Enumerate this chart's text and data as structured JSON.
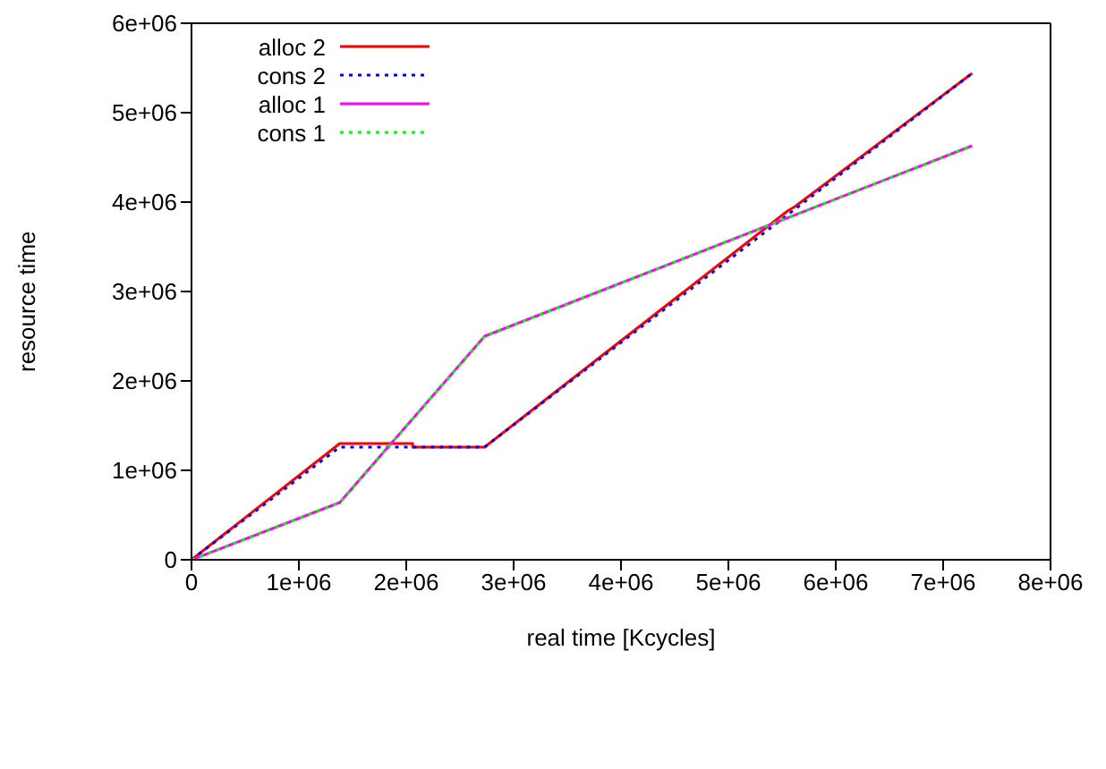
{
  "chart_data": {
    "type": "line",
    "xlabel": "real time [Kcycles]",
    "ylabel": "resource time",
    "xlim": [
      0,
      8000000
    ],
    "xticks": [
      {
        "value": 0,
        "label": "0"
      },
      {
        "value": 1000000,
        "label": "1e+06"
      },
      {
        "value": 2000000,
        "label": "2e+06"
      },
      {
        "value": 3000000,
        "label": "3e+06"
      },
      {
        "value": 4000000,
        "label": "4e+06"
      },
      {
        "value": 5000000,
        "label": "5e+06"
      },
      {
        "value": 6000000,
        "label": "6e+06"
      },
      {
        "value": 7000000,
        "label": "7e+06"
      },
      {
        "value": 8000000,
        "label": "8e+06"
      }
    ],
    "ylim": [
      0,
      6000000
    ],
    "yticks": [
      {
        "value": 0,
        "label": "0"
      },
      {
        "value": 1000000,
        "label": "1e+06"
      },
      {
        "value": 2000000,
        "label": "2e+06"
      },
      {
        "value": 3000000,
        "label": "3e+06"
      },
      {
        "value": 4000000,
        "label": "4e+06"
      },
      {
        "value": 5000000,
        "label": "5e+06"
      },
      {
        "value": 6000000,
        "label": "6e+06"
      }
    ],
    "legend": "top left",
    "marker": "none",
    "series": [
      {
        "name": "alloc 2",
        "color": "#ff0000",
        "line_style": "solid",
        "x": [
          0,
          1380000,
          2060000,
          2060000,
          2730000,
          5550000,
          5620000,
          7270000
        ],
        "values": [
          0,
          1300000,
          1300000,
          1260000,
          1260000,
          3900000,
          3950000,
          5440000
        ]
      },
      {
        "name": "cons 2",
        "color": "#0000ff",
        "line_style": "dotted",
        "x": [
          0,
          1380000,
          2730000,
          7270000
        ],
        "values": [
          0,
          1260000,
          1260000,
          5440000
        ]
      },
      {
        "name": "alloc 1",
        "color": "#ff00ff",
        "line_style": "solid",
        "x": [
          0,
          1380000,
          2730000,
          7270000
        ],
        "values": [
          0,
          640000,
          2500000,
          4630000
        ]
      },
      {
        "name": "cons 1",
        "color": "#00ff00",
        "line_style": "dotted",
        "x": [
          0,
          1380000,
          2730000,
          7270000
        ],
        "values": [
          0,
          640000,
          2500000,
          4630000
        ]
      }
    ]
  }
}
